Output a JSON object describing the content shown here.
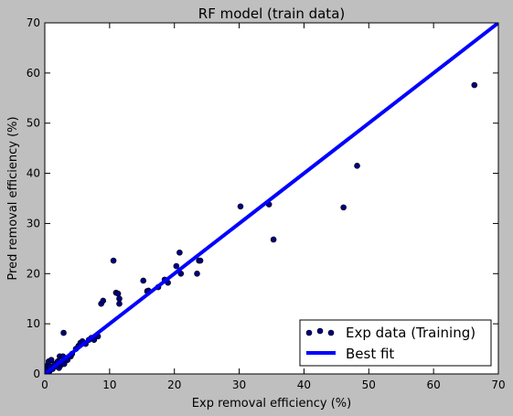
{
  "chart_data": {
    "type": "scatter",
    "title": "RF model (train data)",
    "xlabel": "Exp removal efficiency (%)",
    "ylabel": "Pred removal efficiency (%)",
    "xlim": [
      0,
      70
    ],
    "ylim": [
      0,
      70
    ],
    "xticks": [
      "0",
      "10",
      "20",
      "30",
      "40",
      "50",
      "60",
      "70"
    ],
    "yticks": [
      "0",
      "10",
      "20",
      "30",
      "40",
      "50",
      "60",
      "70"
    ],
    "grid": false,
    "legend_position": "lower-right",
    "series": [
      {
        "name": "Exp data (Training)",
        "kind": "scatter",
        "color": "#000080",
        "points": [
          [
            0.2,
            0.3
          ],
          [
            0.3,
            0.8
          ],
          [
            0.4,
            1.2
          ],
          [
            0.5,
            1.8
          ],
          [
            0.6,
            2.5
          ],
          [
            0.7,
            0.5
          ],
          [
            0.8,
            1.5
          ],
          [
            1.0,
            2.8
          ],
          [
            1.2,
            1.0
          ],
          [
            1.5,
            2.0
          ],
          [
            1.8,
            1.5
          ],
          [
            2.0,
            2.5
          ],
          [
            2.2,
            1.2
          ],
          [
            2.3,
            3.5
          ],
          [
            2.5,
            1.8
          ],
          [
            2.6,
            2.2
          ],
          [
            2.8,
            3.5
          ],
          [
            2.9,
            8.2
          ],
          [
            3.0,
            2.0
          ],
          [
            3.2,
            3.0
          ],
          [
            3.5,
            2.8
          ],
          [
            4.0,
            3.5
          ],
          [
            4.2,
            4.0
          ],
          [
            4.8,
            5.0
          ],
          [
            5.2,
            5.6
          ],
          [
            5.5,
            6.2
          ],
          [
            5.8,
            6.5
          ],
          [
            6.3,
            6.0
          ],
          [
            6.8,
            6.8
          ],
          [
            7.2,
            7.2
          ],
          [
            7.6,
            6.8
          ],
          [
            8.2,
            7.5
          ],
          [
            8.7,
            14.0
          ],
          [
            9.0,
            14.6
          ],
          [
            10.6,
            22.6
          ],
          [
            11.0,
            16.2
          ],
          [
            11.3,
            16.0
          ],
          [
            11.5,
            15.0
          ],
          [
            11.5,
            14.0
          ],
          [
            15.2,
            18.6
          ],
          [
            15.8,
            16.5
          ],
          [
            16.0,
            16.6
          ],
          [
            17.5,
            17.3
          ],
          [
            18.5,
            18.8
          ],
          [
            19.0,
            18.2
          ],
          [
            20.3,
            21.5
          ],
          [
            20.8,
            24.2
          ],
          [
            21.0,
            20.0
          ],
          [
            23.5,
            20.0
          ],
          [
            23.8,
            22.6
          ],
          [
            24.0,
            22.6
          ],
          [
            30.2,
            33.4
          ],
          [
            34.6,
            33.8
          ],
          [
            35.3,
            26.8
          ],
          [
            46.1,
            33.2
          ],
          [
            48.2,
            41.5
          ],
          [
            66.3,
            57.6
          ]
        ]
      },
      {
        "name": "Best fit",
        "kind": "line",
        "color": "#0000ff",
        "points": [
          [
            0,
            0
          ],
          [
            70,
            70
          ]
        ]
      }
    ]
  }
}
